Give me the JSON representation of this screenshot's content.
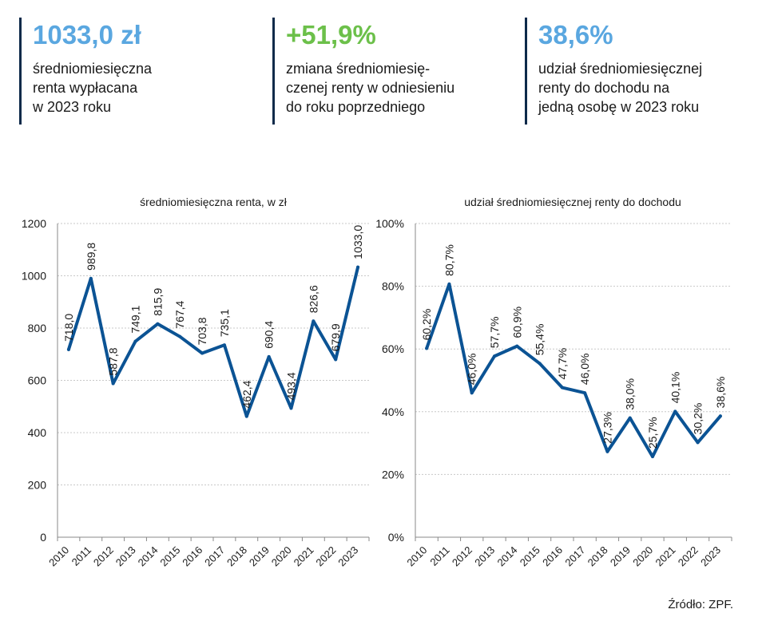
{
  "kpis": [
    {
      "value": "1033,0 zł",
      "desc": "średniomiesięczna\nrenta wypłacana\nw 2023 roku",
      "color": "#5aa7e0"
    },
    {
      "value": "+51,9%",
      "desc": "zmiana średniomiesię-\nczenej renty w odniesieniu\ndo roku poprzedniego",
      "color": "#6cc04a"
    },
    {
      "value": "38,6%",
      "desc": "udział średniomiesięcznej\nrenty do dochodu na\njedną osobę w 2023 roku",
      "color": "#5aa7e0"
    }
  ],
  "chart_data": [
    {
      "type": "line",
      "title": "średniomiesięczna renta, w zł",
      "x": [
        "2010",
        "2011",
        "2012",
        "2013",
        "2014",
        "2015",
        "2016",
        "2017",
        "2018",
        "2019",
        "2020",
        "2021",
        "2022",
        "2023"
      ],
      "values": [
        718.0,
        989.8,
        587.8,
        749.1,
        815.9,
        767.4,
        703.8,
        735.1,
        462.4,
        690.4,
        493.4,
        826.6,
        679.9,
        1033.0
      ],
      "labels": [
        "718,0",
        "989,8",
        "587,8",
        "749,1",
        "815,9",
        "767,4",
        "703,8",
        "735,1",
        "462,4",
        "690,4",
        "493,4",
        "826,6",
        "679,9",
        "1033,0"
      ],
      "yticks": [
        "0",
        "200",
        "400",
        "600",
        "800",
        "1000",
        "1200"
      ],
      "ylim": [
        0,
        1200
      ],
      "grid": true,
      "color": "#0b5394"
    },
    {
      "type": "line",
      "title": "udział średniomiesięcznej renty do dochodu",
      "x": [
        "2010",
        "2011",
        "2012",
        "2013",
        "2014",
        "2015",
        "2016",
        "2017",
        "2018",
        "2019",
        "2020",
        "2021",
        "2022",
        "2023"
      ],
      "values": [
        60.2,
        80.7,
        46.0,
        57.7,
        60.9,
        55.4,
        47.7,
        46.0,
        27.3,
        38.0,
        25.7,
        40.1,
        30.2,
        38.6
      ],
      "labels": [
        "60,2%",
        "80,7%",
        "46,0%",
        "57,7%",
        "60,9%",
        "55,4%",
        "47,7%",
        "46,0%",
        "27,3%",
        "38,0%",
        "25,7%",
        "40,1%",
        "30,2%",
        "38,6%"
      ],
      "yticks": [
        "0%",
        "20%",
        "40%",
        "60%",
        "80%",
        "100%"
      ],
      "ylim": [
        0,
        100
      ],
      "grid": true,
      "color": "#0b5394"
    }
  ],
  "source": "Źródło: ZPF."
}
